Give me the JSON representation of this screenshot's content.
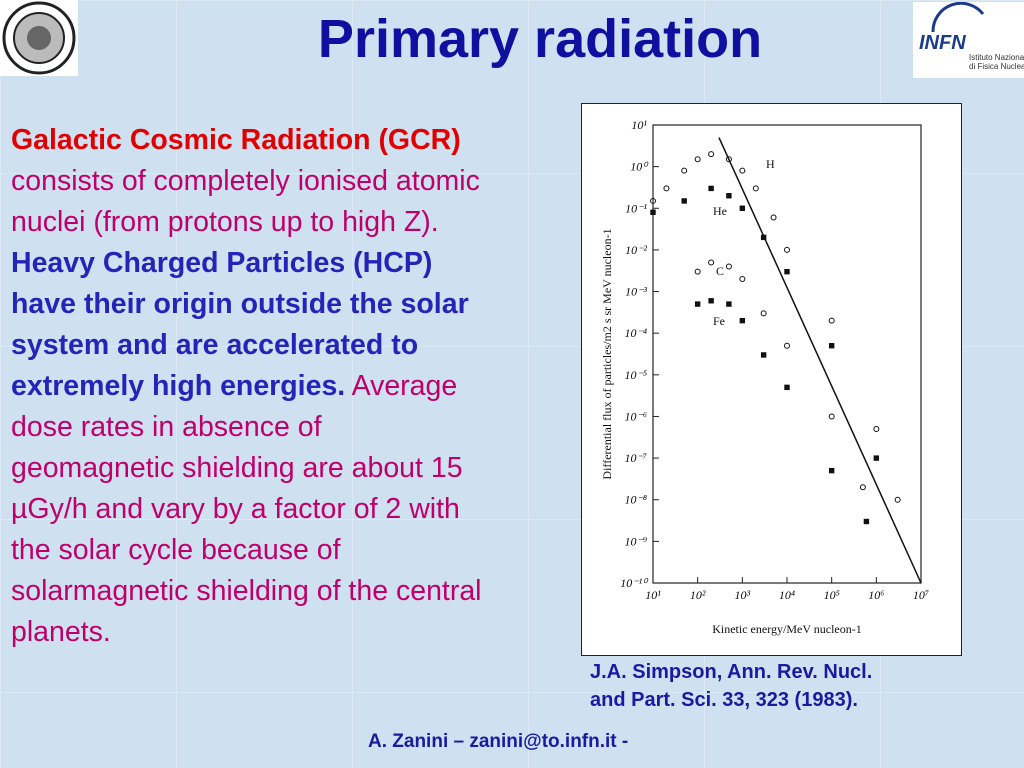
{
  "title": "Primary radiation",
  "logo": {
    "acronym": "INFN",
    "name": [
      "Istituto Nazionale",
      "di Fisica Nucleare"
    ]
  },
  "body": [
    {
      "text": "Galactic Cosmic Radiation (GCR)",
      "color": "#e00000",
      "bold": true
    },
    {
      "text": " consists of completely ionised atomic nuclei (from protons up to high Z). ",
      "color": "#c0006a",
      "bold": false
    },
    {
      "text": "Heavy Charged Particles (HCP) have their origin outside the solar system and are accelerated to extremely high energies.",
      "color": "#2424b8",
      "bold": true
    },
    {
      "text": " Average dose rates in absence of geomagnetic shielding are about 15 µGy/h and vary by a factor of 2 with the solar cycle because of solarmagnetic shielding of the central planets.",
      "color": "#c0006a",
      "bold": false
    }
  ],
  "caption": [
    "J.A. Simpson, Ann. Rev. Nucl.",
    "and Part. Sci. 33, 323 (1983)."
  ],
  "footer": "A. Zanini – zanini@to.infn.it -",
  "chart_data": {
    "type": "scatter",
    "xlabel": "Kinetic energy/MeV nucleon-1",
    "ylabel": "Differential flux  of particles/m2  s sr MeV nucleon-1",
    "xlog": true,
    "ylog": true,
    "xlim": [
      10,
      10000000
    ],
    "ylim": [
      1e-10,
      10
    ],
    "xticks": [
      {
        "value": 10,
        "label": "10¹"
      },
      {
        "value": 100,
        "label": "10²"
      },
      {
        "value": 1000,
        "label": "10³"
      },
      {
        "value": 10000,
        "label": "10⁴"
      },
      {
        "value": 100000,
        "label": "10⁵"
      },
      {
        "value": 1000000,
        "label": "10⁶"
      },
      {
        "value": 10000000,
        "label": "10⁷"
      }
    ],
    "yticks": [
      {
        "value": 10,
        "label": "10¹"
      },
      {
        "value": 1,
        "label": "10⁰"
      },
      {
        "value": 0.1,
        "label": "10⁻¹"
      },
      {
        "value": 0.01,
        "label": "10⁻²"
      },
      {
        "value": 0.001,
        "label": "10⁻³"
      },
      {
        "value": 0.0001,
        "label": "10⁻⁴"
      },
      {
        "value": 1e-05,
        "label": "10⁻⁵"
      },
      {
        "value": 1e-06,
        "label": "10⁻⁶"
      },
      {
        "value": 1e-07,
        "label": "10⁻⁷"
      },
      {
        "value": 1e-08,
        "label": "10⁻⁸"
      },
      {
        "value": 1e-09,
        "label": "10⁻⁹"
      },
      {
        "value": 1e-10,
        "label": "10⁻¹⁰"
      }
    ],
    "series": [
      {
        "name": "H",
        "color": "#111",
        "x": [
          10,
          20,
          50,
          100,
          200,
          500,
          1000,
          2000,
          5000,
          10000,
          100000,
          1000000,
          3000000
        ],
        "values": [
          0.15,
          0.3,
          0.8,
          1.5,
          2,
          1.5,
          0.8,
          0.3,
          0.06,
          0.01,
          0.0002,
          5e-07,
          1e-08
        ]
      },
      {
        "name": "He",
        "color": "#111",
        "x": [
          10,
          50,
          200,
          500,
          1000,
          3000,
          10000,
          100000,
          1000000
        ],
        "values": [
          0.08,
          0.15,
          0.3,
          0.2,
          0.1,
          0.02,
          0.003,
          5e-05,
          1e-07
        ]
      },
      {
        "name": "C",
        "color": "#111",
        "x": [
          100,
          200,
          500,
          1000,
          3000,
          10000,
          100000,
          500000
        ],
        "values": [
          0.003,
          0.005,
          0.004,
          0.002,
          0.0003,
          5e-05,
          1e-06,
          2e-08
        ]
      },
      {
        "name": "Fe",
        "color": "#111",
        "x": [
          100,
          200,
          500,
          1000,
          3000,
          10000,
          100000,
          600000
        ],
        "values": [
          0.0005,
          0.0006,
          0.0005,
          0.0002,
          3e-05,
          5e-06,
          5e-08,
          3e-09
        ]
      }
    ],
    "fit": {
      "x": [
        300,
        10000000
      ],
      "values": [
        5,
        1e-10
      ]
    }
  }
}
